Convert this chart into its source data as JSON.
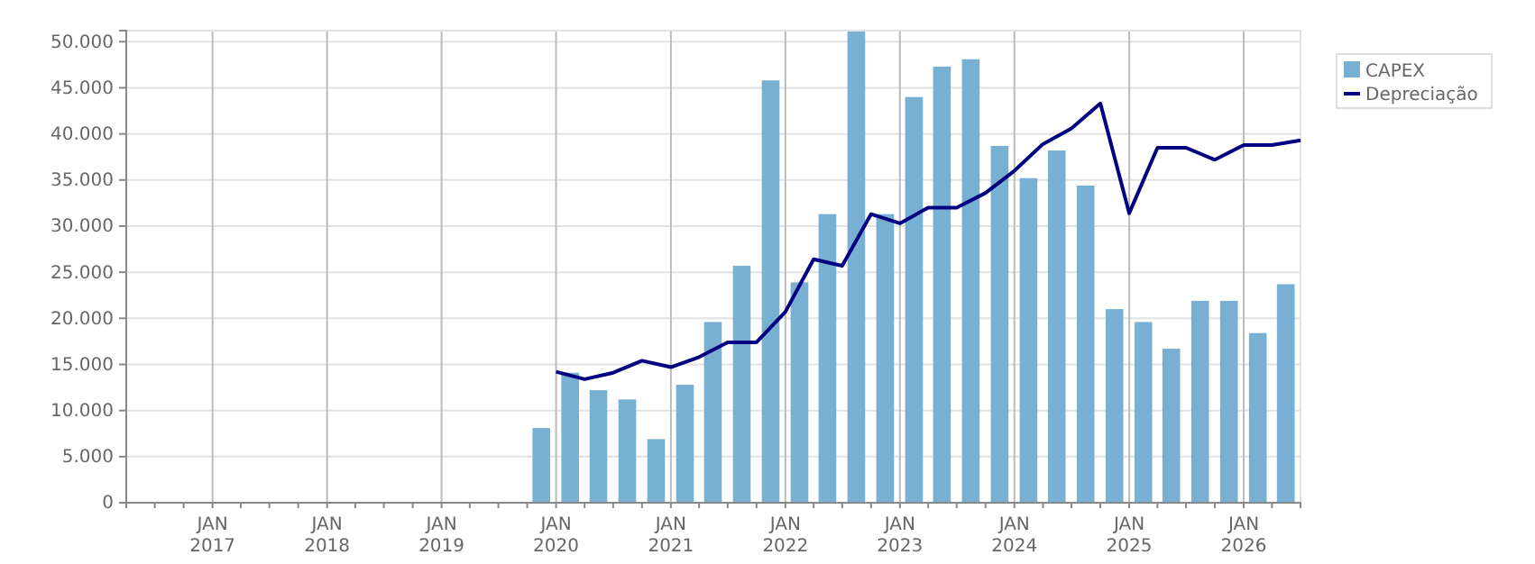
{
  "chart_data": {
    "type": "bar",
    "x": [
      "2019-11-15",
      "2020-02-15",
      "2020-05-15",
      "2020-08-15",
      "2020-11-15",
      "2021-02-15",
      "2021-05-15",
      "2021-08-15",
      "2021-11-15",
      "2022-02-15",
      "2022-05-15",
      "2022-08-15",
      "2022-11-15",
      "2023-02-15",
      "2023-05-15",
      "2023-08-15",
      "2023-11-15",
      "2024-02-15",
      "2024-05-15",
      "2024-08-15",
      "2024-11-15",
      "2025-02-15",
      "2025-05-15",
      "2025-08-15",
      "2025-11-15",
      "2026-02-15",
      "2026-05-15"
    ],
    "series": [
      {
        "name": "CAPEX",
        "color": "#78b0d3",
        "values": [
          8100,
          14100,
          12200,
          11200,
          6900,
          12800,
          19600,
          25700,
          45800,
          23900,
          31300,
          51100,
          31300,
          44000,
          47300,
          48100,
          38700,
          35200,
          38200,
          34400,
          21000,
          19600,
          16700,
          21900,
          21900,
          18400,
          23700
        ]
      },
      {
        "name": "Depreciação",
        "type": "line",
        "color": "#000080",
        "x": [
          "2020-01-01",
          "2020-04-01",
          "2020-07-01",
          "2020-10-01",
          "2021-01-01",
          "2021-04-01",
          "2021-07-01",
          "2021-10-01",
          "2022-01-01",
          "2022-04-01",
          "2022-07-01",
          "2022-10-01",
          "2023-01-01",
          "2023-04-01",
          "2023-07-01",
          "2023-10-01",
          "2024-01-01",
          "2024-04-01",
          "2024-07-01",
          "2024-10-01",
          "2025-01-01",
          "2025-04-01",
          "2025-07-01",
          "2025-10-01",
          "2026-01-01",
          "2026-04-01",
          "2026-07-01"
        ],
        "values": [
          14200,
          13400,
          14100,
          15400,
          14700,
          15800,
          17400,
          17400,
          20700,
          26400,
          25700,
          31300,
          30300,
          32000,
          32000,
          33600,
          36000,
          38900,
          40600,
          43300,
          31400,
          38500,
          38500,
          37200,
          38800,
          38800,
          39300
        ]
      }
    ],
    "xlim": [
      "2016-04-01",
      "2026-07-01"
    ],
    "xticks": [
      {
        "value": "2016-07-01",
        "label": null
      },
      {
        "value": "2016-10-01",
        "label": null
      },
      {
        "value": "2017-01-01",
        "label": "JAN 2017"
      },
      {
        "value": "2017-04-01",
        "label": null
      },
      {
        "value": "2017-07-01",
        "label": null
      },
      {
        "value": "2017-10-01",
        "label": null
      },
      {
        "value": "2018-01-01",
        "label": "JAN 2018"
      },
      {
        "value": "2018-04-01",
        "label": null
      },
      {
        "value": "2018-07-01",
        "label": null
      },
      {
        "value": "2018-10-01",
        "label": null
      },
      {
        "value": "2019-01-01",
        "label": "JAN 2019"
      },
      {
        "value": "2019-04-01",
        "label": null
      },
      {
        "value": "2019-07-01",
        "label": null
      },
      {
        "value": "2019-10-01",
        "label": null
      },
      {
        "value": "2020-01-01",
        "label": "JAN 2020"
      },
      {
        "value": "2020-04-01",
        "label": null
      },
      {
        "value": "2020-07-01",
        "label": null
      },
      {
        "value": "2020-10-01",
        "label": null
      },
      {
        "value": "2021-01-01",
        "label": "JAN 2021"
      },
      {
        "value": "2021-04-01",
        "label": null
      },
      {
        "value": "2021-07-01",
        "label": null
      },
      {
        "value": "2021-10-01",
        "label": null
      },
      {
        "value": "2022-01-01",
        "label": "JAN 2022"
      },
      {
        "value": "2022-04-01",
        "label": null
      },
      {
        "value": "2022-07-01",
        "label": null
      },
      {
        "value": "2022-10-01",
        "label": null
      },
      {
        "value": "2023-01-01",
        "label": "JAN 2023"
      },
      {
        "value": "2023-04-01",
        "label": null
      },
      {
        "value": "2023-07-01",
        "label": null
      },
      {
        "value": "2023-10-01",
        "label": null
      },
      {
        "value": "2024-01-01",
        "label": "JAN 2024"
      },
      {
        "value": "2024-04-01",
        "label": null
      },
      {
        "value": "2024-07-01",
        "label": null
      },
      {
        "value": "2024-10-01",
        "label": null
      },
      {
        "value": "2025-01-01",
        "label": "JAN 2025"
      },
      {
        "value": "2025-04-01",
        "label": null
      },
      {
        "value": "2025-07-01",
        "label": null
      },
      {
        "value": "2025-10-01",
        "label": null
      },
      {
        "value": "2026-01-01",
        "label": "JAN 2026"
      },
      {
        "value": "2026-04-01",
        "label": null
      },
      {
        "value": "2026-07-01",
        "label": null
      }
    ],
    "ylim": [
      0,
      51200
    ],
    "yticks": [
      0,
      {
        "value": 5000,
        "label": "5.000"
      },
      {
        "value": 10000,
        "label": "10.000"
      },
      {
        "value": 15000,
        "label": "15.000"
      },
      {
        "value": 20000,
        "label": "20.000"
      },
      {
        "value": 25000,
        "label": "25.000"
      },
      {
        "value": 30000,
        "label": "30.000"
      },
      {
        "value": 35000,
        "label": "35.000"
      },
      {
        "value": 40000,
        "label": "40.000"
      },
      {
        "value": 45000,
        "label": "45.000"
      },
      {
        "value": 50000,
        "label": "50.000"
      }
    ],
    "grid": true,
    "legend": "top right"
  }
}
